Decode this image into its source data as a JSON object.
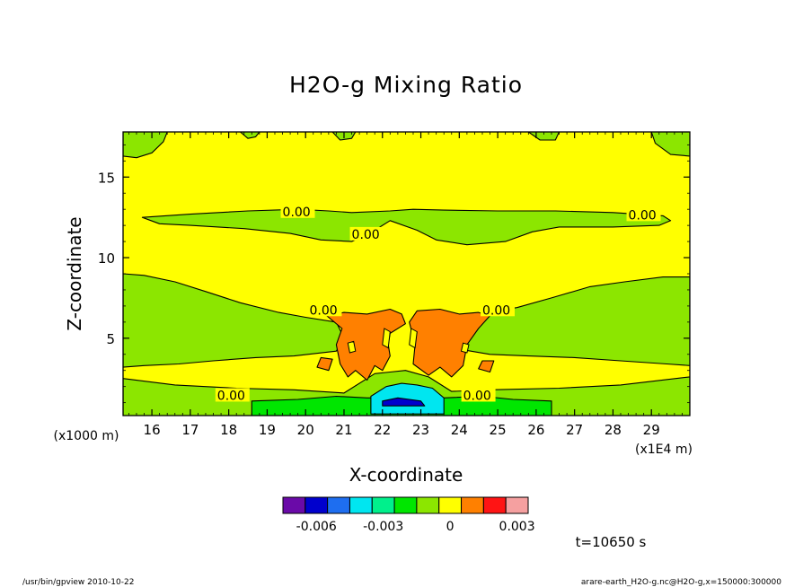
{
  "chart_data": {
    "type": "heatmap",
    "title": "H2O-g Mixing Ratio",
    "xlabel": "X-coordinate",
    "ylabel": "Z-coordinate",
    "x_unit_left": "(x1000 m)",
    "x_unit_right": "(x1E4 m)",
    "xlim": [
      15.25,
      30.0
    ],
    "ylim": [
      0.2,
      17.8
    ],
    "x_ticks": [
      16,
      17,
      18,
      19,
      20,
      21,
      22,
      23,
      24,
      25,
      26,
      27,
      28,
      29
    ],
    "x_tick_labels": [
      "16",
      "17",
      "18",
      "19",
      "20",
      "21",
      "22",
      "23",
      "24",
      "25",
      "26",
      "27",
      "28",
      "29"
    ],
    "y_ticks": [
      5,
      10,
      15
    ],
    "y_tick_labels": [
      "5",
      "10",
      "15"
    ],
    "contour_labels": [
      {
        "text": "0.00",
        "x": 19.4,
        "z": 12.8
      },
      {
        "text": "0.00",
        "x": 28.4,
        "z": 12.6
      },
      {
        "text": "0.00",
        "x": 21.2,
        "z": 11.4
      },
      {
        "text": "0.00",
        "x": 20.1,
        "z": 6.7
      },
      {
        "text": "0.00",
        "x": 24.6,
        "z": 6.7
      },
      {
        "text": "0.00",
        "x": 17.7,
        "z": 1.4
      },
      {
        "text": "0.00",
        "x": 24.1,
        "z": 1.4
      }
    ],
    "colorbar": {
      "colors": [
        "#6a0aa8",
        "#0000cd",
        "#1e6ef0",
        "#00e6f0",
        "#00f08c",
        "#00e600",
        "#8ce600",
        "#ffff00",
        "#ff8000",
        "#ff1414",
        "#f5a0a0"
      ],
      "tick_labels": [
        "-0.006",
        "-0.003",
        "0",
        "0.003"
      ],
      "tick_values": [
        -0.006,
        -0.003,
        0,
        0.003
      ],
      "level_min": -0.0075,
      "level_step": 0.001
    },
    "colors": {
      "yellow": "#ffff00",
      "green": "#8ce600",
      "dark_green": "#00e600",
      "orange": "#ff8000",
      "cyan": "#00e6f0",
      "blue": "#0000cd"
    }
  },
  "time_label": "t=10650 s",
  "footer_left": "/usr/bin/gpview   2010-10-22",
  "footer_right": "arare-earth_H2O-g.nc@H2O-g,x=150000:300000"
}
